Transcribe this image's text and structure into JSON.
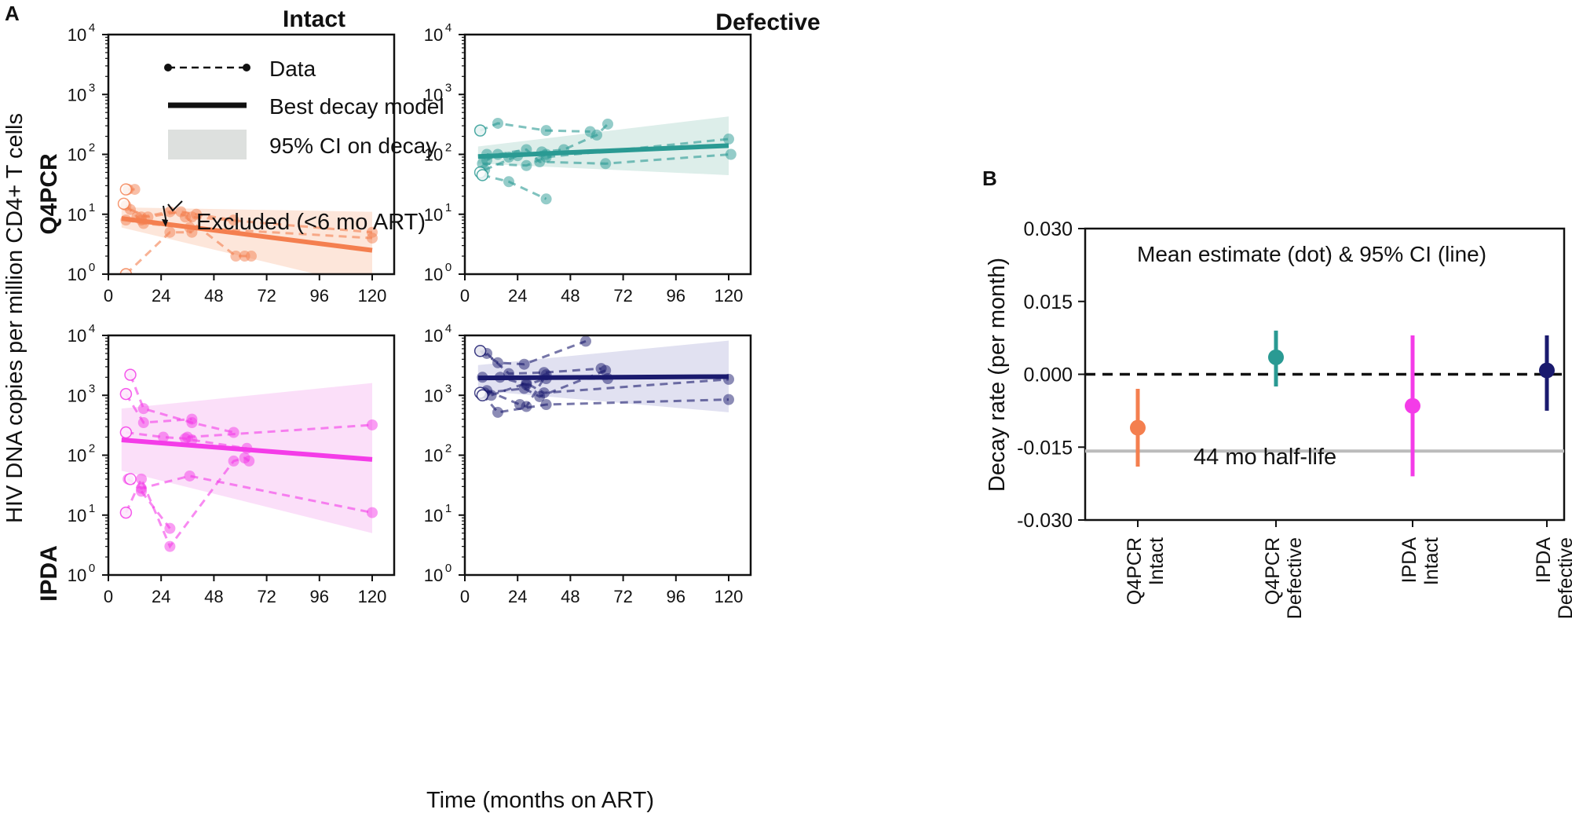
{
  "panel_labels": {
    "a": "A",
    "b": "B"
  },
  "column_titles": {
    "intact": "Intact",
    "defective": "Defective"
  },
  "row_labels": {
    "q4pcr": "Q4PCR",
    "ipda": "IPDA"
  },
  "y_axis_label": "HIV DNA copies per million CD4+ T cells",
  "x_axis_label": "Time (months on ART)",
  "legend": {
    "data": "Data",
    "model": "Best decay model",
    "ci": "95% CI on decay"
  },
  "annotation_excluded": "Excluded (<6 mo ART)",
  "x_ticks": [
    "0",
    "24",
    "48",
    "72",
    "96",
    "120"
  ],
  "y_tick_base": "10",
  "y_tick_exps": [
    "0",
    "1",
    "2",
    "3",
    "4"
  ],
  "colors": {
    "q4_intact": "#f47f4f",
    "q4_defective": "#2a9a93",
    "ipda_intact": "#f43ce8",
    "ipda_defective": "#1a1a6e",
    "grey_band": "#bbbbbb"
  },
  "panel_b": {
    "annotation": "Mean estimate (dot) & 95% CI (line)",
    "ylabel": "Decay rate (per month)",
    "y_ticks": [
      "0.030",
      "0.015",
      "0.000",
      "-0.015",
      "-0.030"
    ],
    "half_life_label": "44 mo half-life"
  },
  "chart_data": [
    {
      "type": "line",
      "title": "Q4PCR Intact",
      "yscale": "log",
      "xlim": [
        0,
        130
      ],
      "ylim": [
        1,
        10000
      ],
      "model": {
        "x": [
          6,
          120
        ],
        "y": [
          8.5,
          2.5
        ]
      },
      "ci": {
        "x": [
          6,
          120
        ],
        "lower": [
          6,
          0.6
        ],
        "upper": [
          13,
          11
        ]
      },
      "series": [
        {
          "x": [
            8,
            13,
            15
          ],
          "y": [
            14,
            9,
            8
          ]
        },
        {
          "x": [
            10,
            18,
            33,
            40,
            57
          ],
          "y": [
            12,
            9,
            11,
            10,
            8
          ]
        },
        {
          "x": [
            15,
            28,
            38,
            120
          ],
          "y": [
            9,
            11,
            9,
            5
          ]
        },
        {
          "x": [
            8,
            16,
            37,
            120
          ],
          "y": [
            8,
            7,
            6,
            4
          ]
        },
        {
          "x": [
            8,
            28,
            38
          ],
          "y": [
            1,
            5,
            5
          ]
        },
        {
          "x": [
            9,
            12
          ],
          "y": [
            26,
            26
          ]
        },
        {
          "x": [
            35,
            58,
            62,
            65
          ],
          "y": [
            9,
            2,
            2,
            2
          ]
        }
      ],
      "excluded": [
        {
          "x": 8,
          "y": 26
        },
        {
          "x": 7,
          "y": 15
        },
        {
          "x": 8,
          "y": 1
        }
      ]
    },
    {
      "type": "line",
      "title": "Q4PCR Defective",
      "yscale": "log",
      "xlim": [
        0,
        130
      ],
      "ylim": [
        1,
        10000
      ],
      "model": {
        "x": [
          6,
          120
        ],
        "y": [
          92,
          140
        ]
      },
      "ci": {
        "x": [
          6,
          120
        ],
        "lower": [
          70,
          45
        ],
        "upper": [
          135,
          430
        ]
      },
      "series": [
        {
          "x": [
            7,
            15,
            37,
            57
          ],
          "y": [
            250,
            330,
            250,
            240
          ]
        },
        {
          "x": [
            10,
            20,
            35,
            45,
            60,
            65
          ],
          "y": [
            100,
            90,
            110,
            120,
            210,
            320
          ]
        },
        {
          "x": [
            8,
            28,
            37,
            120
          ],
          "y": [
            70,
            65,
            90,
            180
          ]
        },
        {
          "x": [
            10,
            15,
            28,
            34,
            64,
            121
          ],
          "y": [
            80,
            100,
            120,
            75,
            70,
            100
          ]
        },
        {
          "x": [
            8,
            20,
            37
          ],
          "y": [
            45,
            35,
            18
          ]
        },
        {
          "x": [
            9,
            24,
            37
          ],
          "y": [
            55,
            95,
            100
          ]
        }
      ],
      "excluded": [
        {
          "x": 7,
          "y": 250
        },
        {
          "x": 7,
          "y": 50
        },
        {
          "x": 8,
          "y": 45
        }
      ]
    },
    {
      "type": "line",
      "title": "IPDA Intact",
      "yscale": "log",
      "xlim": [
        0,
        130
      ],
      "ylim": [
        1,
        10000
      ],
      "model": {
        "x": [
          6,
          120
        ],
        "y": [
          180,
          85
        ]
      },
      "ci": {
        "x": [
          6,
          120
        ],
        "lower": [
          55,
          5
        ],
        "upper": [
          600,
          1600
        ]
      },
      "series": [
        {
          "x": [
            10,
            16,
            38,
            57
          ],
          "y": [
            2200,
            600,
            350,
            240
          ]
        },
        {
          "x": [
            8,
            16,
            38
          ],
          "y": [
            1050,
            350,
            400
          ]
        },
        {
          "x": [
            8,
            25,
            35,
            38,
            63
          ],
          "y": [
            240,
            200,
            190,
            180,
            130
          ]
        },
        {
          "x": [
            36,
            120
          ],
          "y": [
            200,
            320
          ]
        },
        {
          "x": [
            9,
            15,
            37,
            120
          ],
          "y": [
            40,
            28,
            45,
            11
          ]
        },
        {
          "x": [
            8,
            15,
            28,
            57,
            62,
            64
          ],
          "y": [
            11,
            40,
            3,
            80,
            90,
            80
          ]
        },
        {
          "x": [
            15,
            28
          ],
          "y": [
            25,
            6
          ]
        }
      ],
      "excluded": [
        {
          "x": 10,
          "y": 2200
        },
        {
          "x": 8,
          "y": 1050
        },
        {
          "x": 8,
          "y": 240
        },
        {
          "x": 10,
          "y": 40
        },
        {
          "x": 8,
          "y": 11
        }
      ]
    },
    {
      "type": "line",
      "title": "IPDA Defective",
      "yscale": "log",
      "xlim": [
        0,
        130
      ],
      "ylim": [
        1,
        10000
      ],
      "model": {
        "x": [
          6,
          120
        ],
        "y": [
          1950,
          2050
        ]
      },
      "ci": {
        "x": [
          6,
          120
        ],
        "lower": [
          1200,
          520
        ],
        "upper": [
          3200,
          8200
        ]
      },
      "series": [
        {
          "x": [
            7,
            15,
            27,
            55
          ],
          "y": [
            5500,
            3500,
            3300,
            8000
          ]
        },
        {
          "x": [
            10,
            20,
            36,
            62
          ],
          "y": [
            5000,
            2300,
            2400,
            2800
          ]
        },
        {
          "x": [
            8,
            16,
            28,
            37,
            65
          ],
          "y": [
            2000,
            2000,
            1500,
            1900,
            1900
          ]
        },
        {
          "x": [
            9,
            27,
            34,
            64
          ],
          "y": [
            1100,
            1300,
            950,
            2600
          ]
        },
        {
          "x": [
            8,
            15,
            37,
            120
          ],
          "y": [
            1050,
            520,
            700,
            850
          ]
        },
        {
          "x": [
            12,
            28,
            36,
            120
          ],
          "y": [
            1000,
            1600,
            1100,
            1850
          ]
        },
        {
          "x": [
            10,
            25,
            28,
            37
          ],
          "y": [
            1200,
            700,
            650,
            2200
          ]
        }
      ],
      "excluded": [
        {
          "x": 7,
          "y": 5500
        },
        {
          "x": 7,
          "y": 1100
        },
        {
          "x": 8,
          "y": 1000
        }
      ]
    },
    {
      "type": "scatter",
      "title": "Decay rate (per month)",
      "categories": [
        "Q4PCR\nIntact",
        "Q4PCR\nDefective",
        "IPDA\nIntact",
        "IPDA\nDefective"
      ],
      "means": [
        -0.011,
        0.0035,
        -0.0065,
        0.0008
      ],
      "ci_low": [
        -0.019,
        -0.0025,
        -0.021,
        -0.0075
      ],
      "ci_high": [
        -0.003,
        0.009,
        0.008,
        0.008
      ],
      "ylim": [
        -0.03,
        0.03
      ],
      "reference_lines": {
        "zero": 0.0,
        "half_life_44mo": -0.0158
      }
    }
  ]
}
